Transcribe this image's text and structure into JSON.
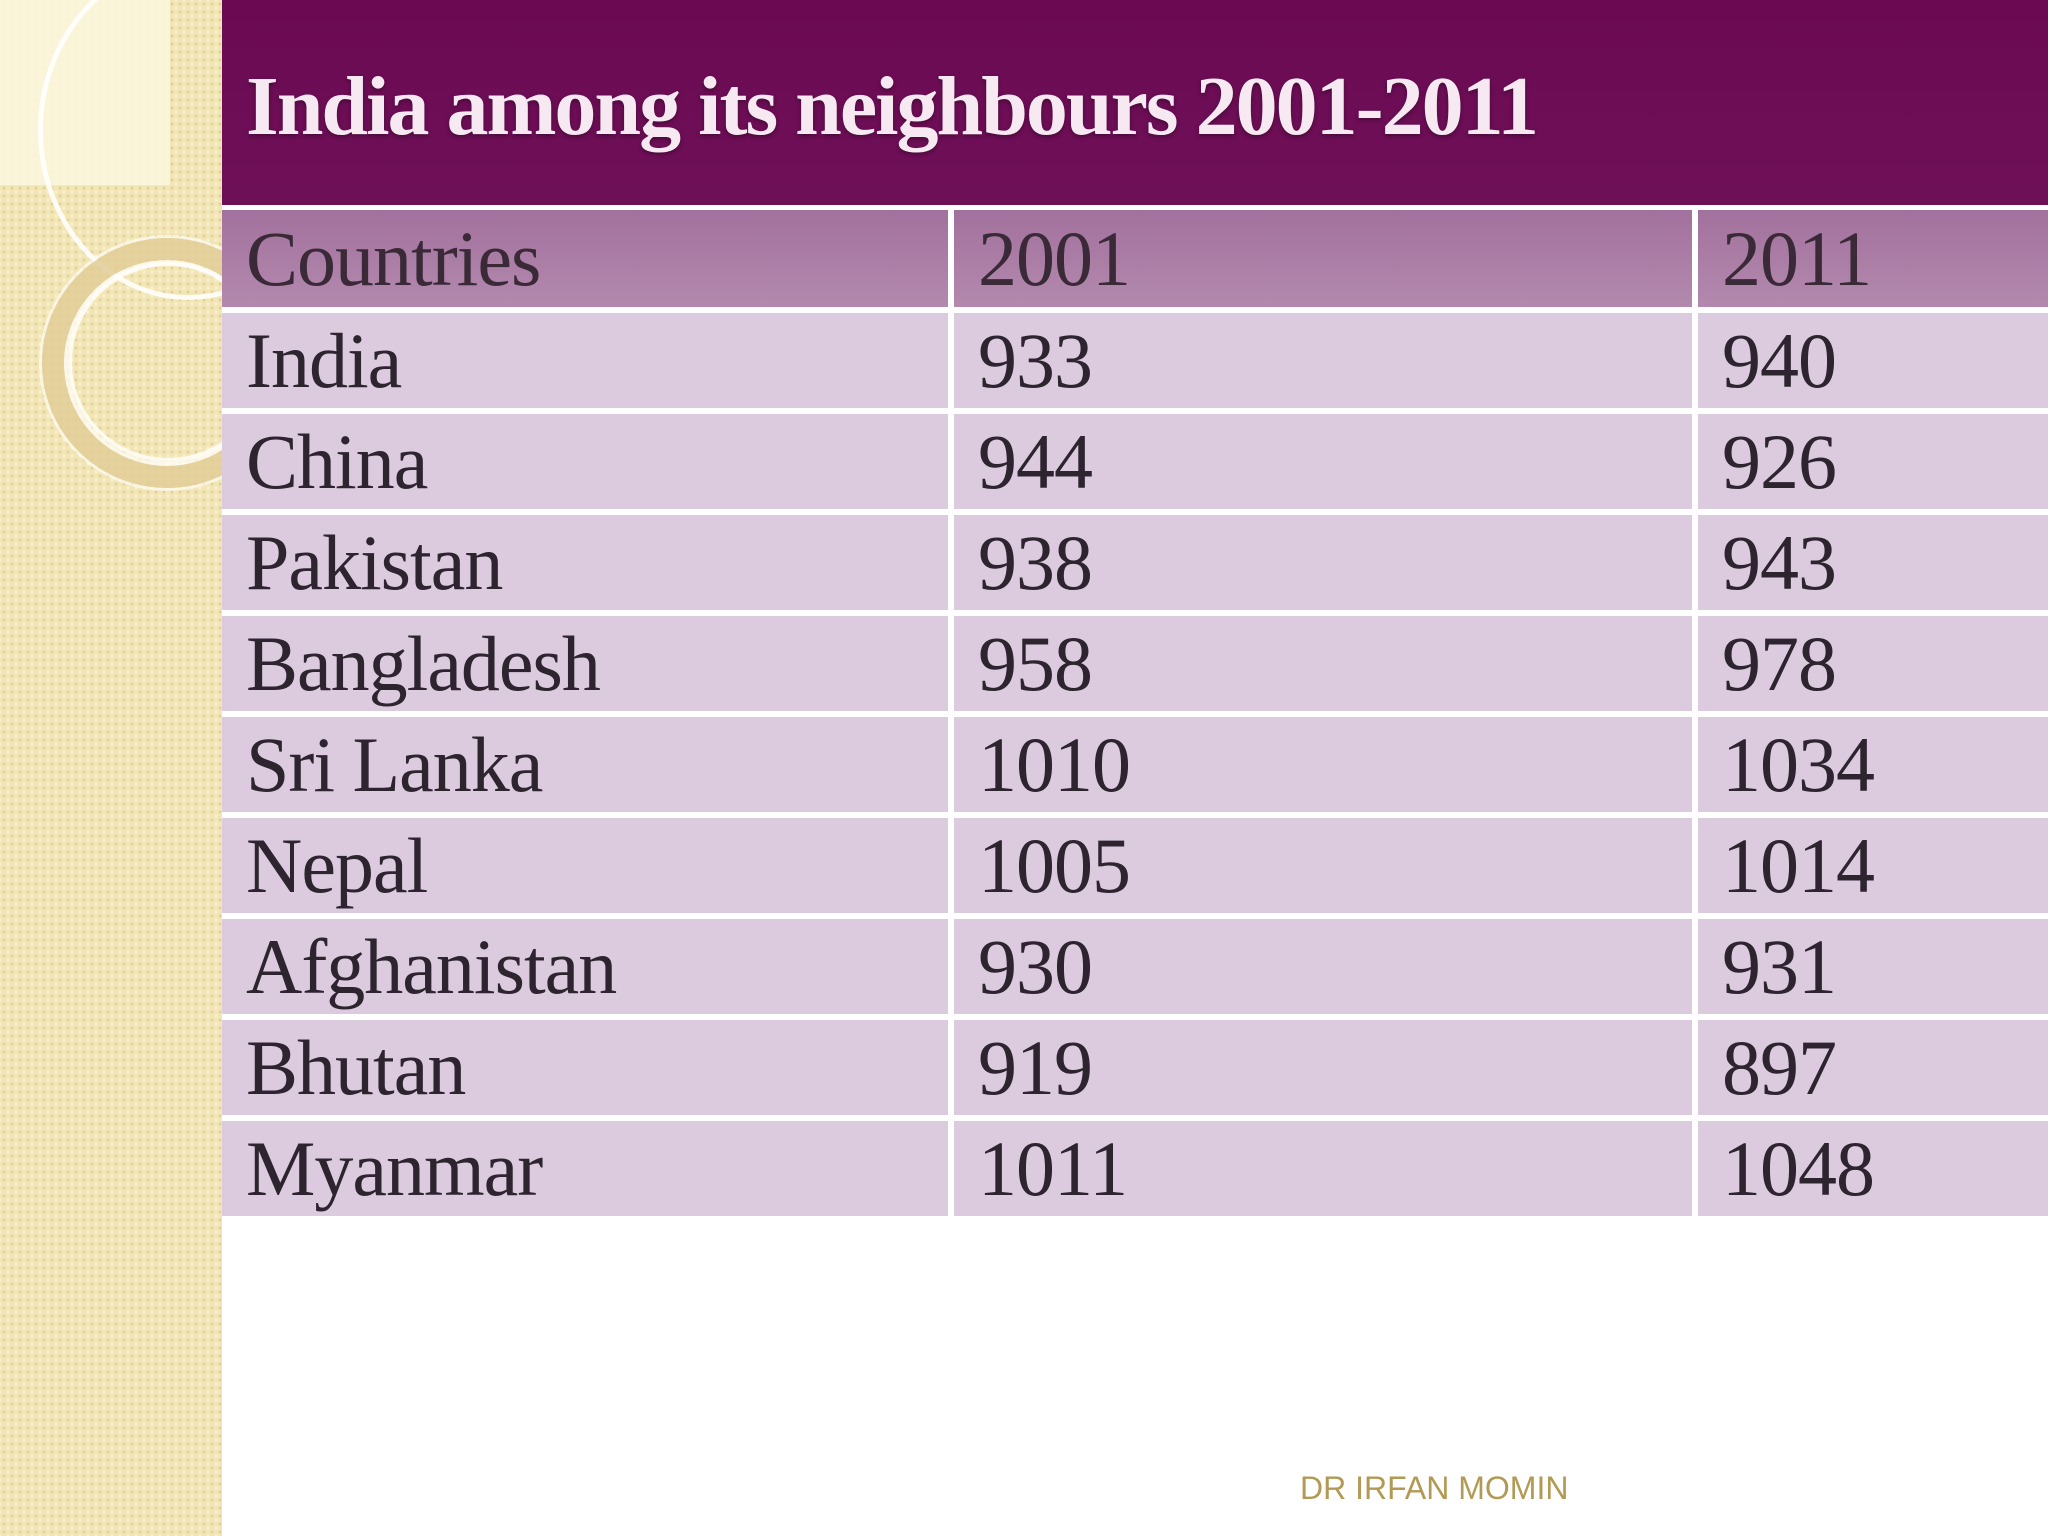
{
  "slide": {
    "title": "India among its neighbours 2001-2011",
    "watermark": "DR IRFAN MOMIN"
  },
  "table": {
    "headers": [
      "Countries",
      "2001",
      "2011"
    ],
    "rows": [
      {
        "country": "India",
        "y2001": "933",
        "y2011": "940"
      },
      {
        "country": "China",
        "y2001": "944",
        "y2011": "926"
      },
      {
        "country": "Pakistan",
        "y2001": "938",
        "y2011": "943"
      },
      {
        "country": "Bangladesh",
        "y2001": "958",
        "y2011": "978"
      },
      {
        "country": "Sri Lanka",
        "y2001": "1010",
        "y2011": "1034"
      },
      {
        "country": "Nepal",
        "y2001": "1005",
        "y2011": "1014"
      },
      {
        "country": "Afghanistan",
        "y2001": "930",
        "y2011": "931"
      },
      {
        "country": "Bhutan",
        "y2001": "919",
        "y2011": "897"
      },
      {
        "country": "Myanmar",
        "y2001": "1011",
        "y2011": "1048"
      }
    ]
  },
  "colors": {
    "title_bar": "#6b0a52",
    "header_row": "#a2719d",
    "body_row": "#dccbdf",
    "left_panel": "#f3e6b6"
  }
}
